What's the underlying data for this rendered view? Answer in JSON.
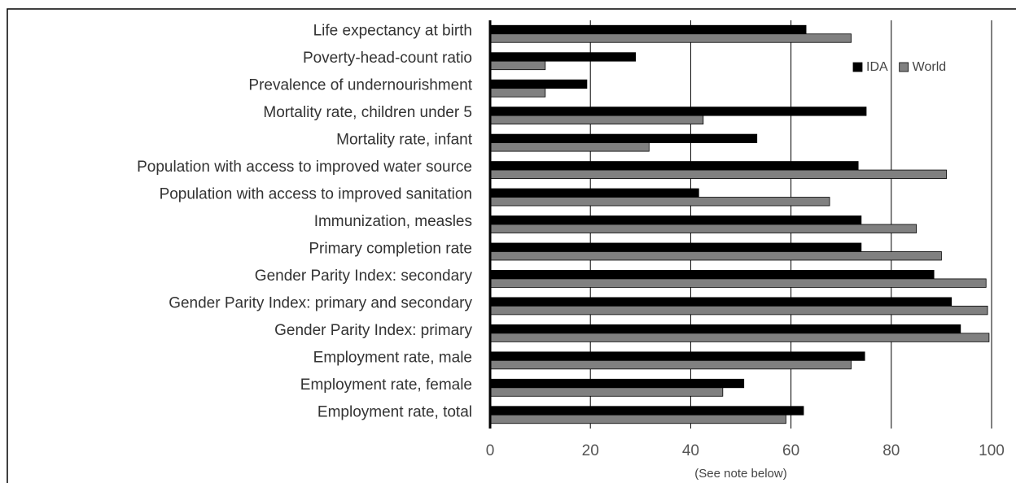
{
  "chart_data": {
    "type": "bar",
    "orientation": "horizontal",
    "categories": [
      "Life expectancy at birth",
      "Poverty-head-count ratio",
      "Prevalence of undernourishment",
      "Mortality rate, children under 5",
      "Mortality rate, infant",
      "Population with access to improved water source",
      "Population with access to improved sanitation",
      "Immunization, measles",
      "Primary completion rate",
      "Gender Parity Index: secondary",
      "Gender Parity Index: primary and secondary",
      "Gender Parity Index: primary",
      "Employment rate, male",
      "Employment rate, female",
      "Employment rate, total"
    ],
    "series": [
      {
        "name": "IDA",
        "color": "#000000",
        "values": [
          63,
          29,
          19.3,
          75,
          53.2,
          73.4,
          41.6,
          74,
          74,
          88.5,
          92,
          93.8,
          74.7,
          50.6,
          62.5
        ]
      },
      {
        "name": "World",
        "color": "#808080",
        "values": [
          72,
          11,
          11,
          42.5,
          31.7,
          91,
          67.7,
          85,
          90,
          98.9,
          99.2,
          99.5,
          72,
          46.4,
          59
        ]
      }
    ],
    "xlim": [
      0,
      100
    ],
    "xticks": [
      0,
      20,
      40,
      60,
      80,
      100
    ],
    "x_label": "(See note below)",
    "grid": true,
    "legend": "upper right"
  }
}
